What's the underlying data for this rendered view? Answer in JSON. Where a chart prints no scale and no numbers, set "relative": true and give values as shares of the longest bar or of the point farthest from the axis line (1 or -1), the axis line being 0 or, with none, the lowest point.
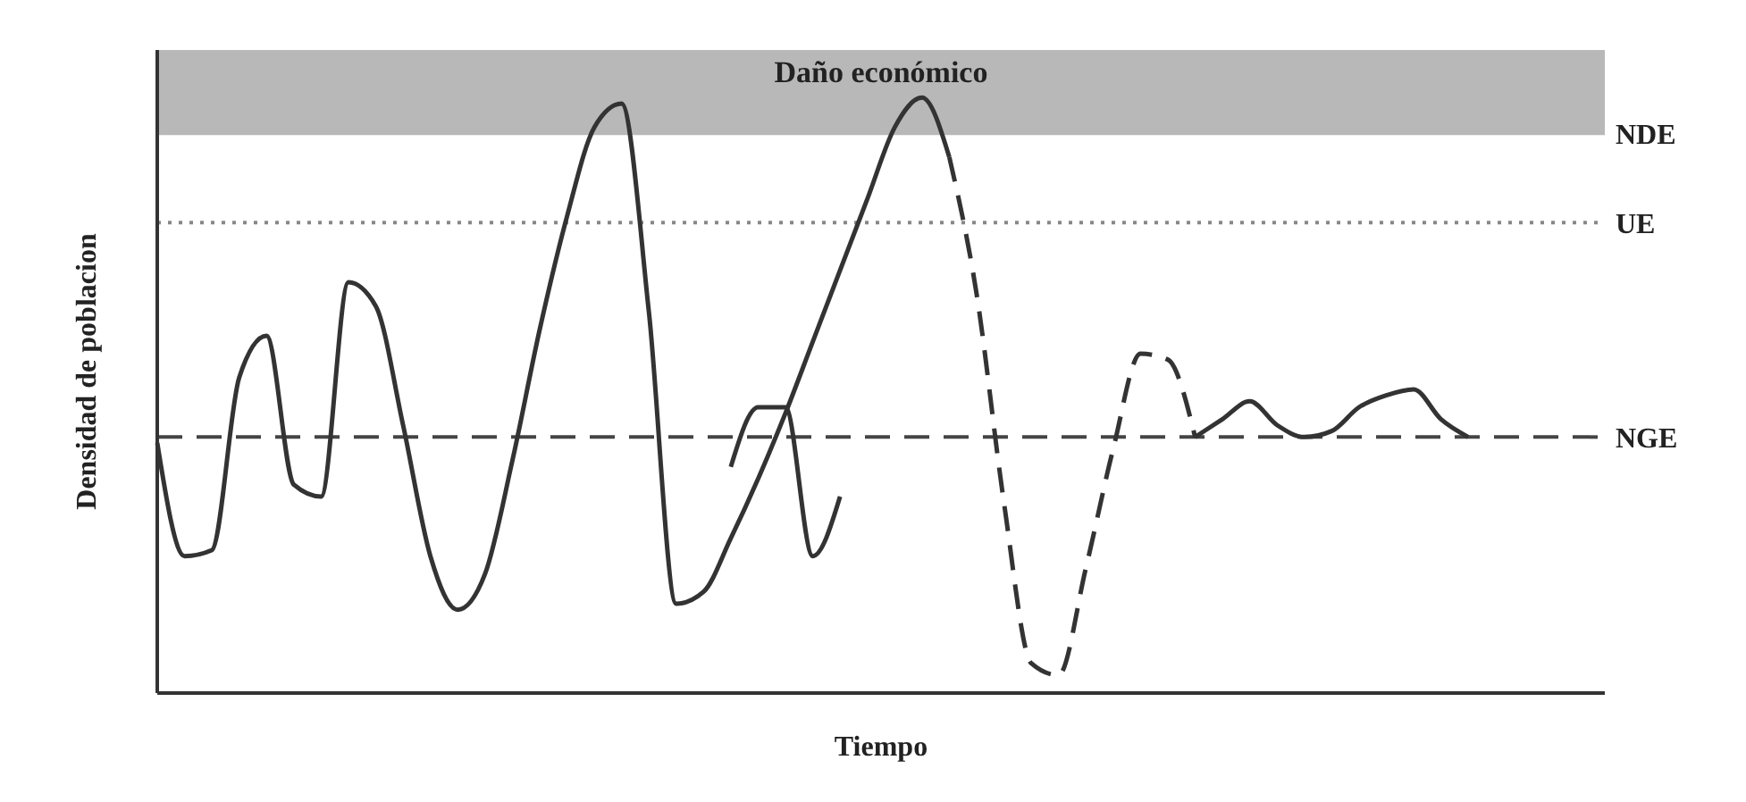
{
  "chart_data": {
    "type": "line",
    "relative": true,
    "xlabel": "Tiempo",
    "ylabel": "Densidad de poblacion",
    "categories": [
      null,
      null,
      null,
      null,
      null,
      null,
      null,
      null,
      null,
      null,
      null,
      null,
      null,
      null,
      null,
      null,
      null,
      null,
      null,
      null,
      null,
      null,
      null,
      null,
      null,
      null,
      null,
      null,
      null,
      null,
      null,
      null,
      null,
      null,
      null,
      null,
      null,
      null,
      null,
      null,
      null,
      null,
      null,
      null,
      null,
      null,
      null,
      null,
      null,
      null,
      null,
      null,
      null,
      null
    ],
    "series": [
      {
        "color": "#333333",
        "line_style": "solid",
        "values": [
          0.42,
          0.23,
          0.24,
          0.53,
          0.6,
          0.35,
          0.33,
          0.69,
          0.65,
          0.45,
          0.23,
          0.14,
          0.2,
          0.39,
          0.61,
          0.8,
          0.95,
          0.99,
          0.64,
          0.15,
          0.17,
          0.26,
          0.36,
          0.47,
          0.59,
          0.71,
          0.83,
          0.95,
          1.0,
          0.9,
          null,
          null,
          null,
          null,
          null,
          null,
          null,
          null,
          null,
          null,
          null,
          null,
          null,
          null,
          null,
          null,
          null,
          null,
          null,
          null,
          null,
          null,
          null,
          null
        ]
      },
      {
        "color": "#333333",
        "line_style": "solid",
        "values": [
          null,
          null,
          null,
          null,
          null,
          null,
          null,
          null,
          null,
          null,
          null,
          null,
          null,
          null,
          null,
          null,
          null,
          null,
          null,
          null,
          null,
          0.38,
          0.48,
          0.48,
          0.23,
          0.33,
          null,
          null,
          null,
          null,
          null,
          null,
          null,
          null,
          null,
          null,
          null,
          null,
          null,
          null,
          null,
          null,
          null,
          null,
          null,
          null,
          null,
          null,
          null,
          null,
          null,
          null,
          null,
          null
        ]
      },
      {
        "color": "#333333",
        "line_style": "dashed",
        "values": [
          null,
          null,
          null,
          null,
          null,
          null,
          null,
          null,
          null,
          null,
          null,
          null,
          null,
          null,
          null,
          null,
          null,
          null,
          null,
          null,
          null,
          null,
          null,
          null,
          null,
          null,
          null,
          null,
          null,
          0.9,
          0.67,
          0.32,
          0.05,
          0.03,
          0.21,
          0.41,
          0.57,
          0.56,
          0.43,
          null,
          null,
          null,
          null,
          null,
          null,
          null,
          null,
          null,
          null,
          null,
          null,
          null,
          null,
          null
        ]
      },
      {
        "color": "#333333",
        "line_style": "solid",
        "values": [
          null,
          null,
          null,
          null,
          null,
          null,
          null,
          null,
          null,
          null,
          null,
          null,
          null,
          null,
          null,
          null,
          null,
          null,
          null,
          null,
          null,
          null,
          null,
          null,
          null,
          null,
          null,
          null,
          null,
          null,
          null,
          null,
          null,
          null,
          null,
          null,
          null,
          null,
          0.43,
          0.46,
          0.49,
          0.45,
          0.43,
          0.44,
          0.48,
          0.5,
          0.51,
          0.46,
          0.43,
          null,
          null,
          null,
          null,
          null
        ]
      }
    ],
    "bands": [
      {
        "axis": "y",
        "from": 0.94,
        "to": 1.08,
        "label": "Daño económico",
        "color": "#b8b8b8"
      }
    ],
    "ref_lines": [
      {
        "axis": "y",
        "value": 0.94,
        "label": "NDE",
        "color": "#b8b8b8",
        "line_style": "solid"
      },
      {
        "axis": "y",
        "value": 0.79,
        "label": "UE",
        "color": "#888888",
        "line_style": "dotted"
      },
      {
        "axis": "y",
        "value": 0.43,
        "label": "NGE",
        "color": "#444444",
        "line_style": "dashed"
      }
    ]
  }
}
